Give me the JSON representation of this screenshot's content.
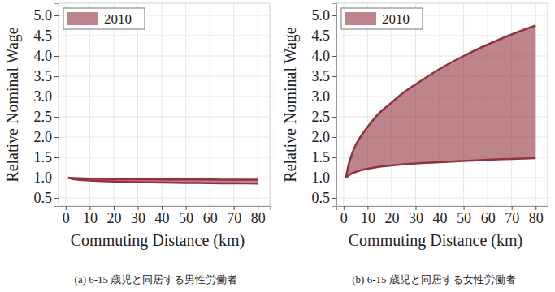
{
  "chart_data": [
    {
      "type": "area",
      "title": "(a)  6-15 歳児と同居する男性労働者",
      "x_label": "Commuting Distance (km)",
      "y_label": "Relative Nominal Wage",
      "x": [
        1,
        2,
        3,
        5,
        7,
        10,
        15,
        20,
        25,
        30,
        40,
        50,
        60,
        70,
        80
      ],
      "series": [
        {
          "name": "2010",
          "color": "#93323f",
          "values": [
            1.0,
            0.995,
            0.99,
            0.985,
            0.98,
            0.975,
            0.97,
            0.965,
            0.962,
            0.96,
            0.957,
            0.955,
            0.953,
            0.951,
            0.95
          ],
          "low": [
            1.0,
            0.98,
            0.965,
            0.95,
            0.94,
            0.93,
            0.915,
            0.905,
            0.895,
            0.89,
            0.88,
            0.872,
            0.865,
            0.86,
            0.855
          ]
        }
      ],
      "xlim": [
        -3,
        85
      ],
      "xticks": [
        0,
        10,
        20,
        30,
        40,
        50,
        60,
        70,
        80
      ],
      "ylim": [
        0.3,
        5.3
      ],
      "yticks": [
        0.5,
        {
          "value": 1,
          "label": "1.0"
        },
        1.5,
        {
          "value": 2,
          "label": "2.0"
        },
        2.5,
        {
          "value": 3,
          "label": "3.0"
        },
        3.5,
        {
          "value": 4,
          "label": "4.0"
        },
        4.5,
        {
          "value": 5,
          "label": "5.0"
        }
      ],
      "grid": true,
      "legend": "top-left"
    },
    {
      "type": "area",
      "title": "(b) 6-15 歳児と同居する女性労働者",
      "x_label": "Commuting Distance (km)",
      "y_label": "Relative Nominal Wage",
      "x": [
        1,
        2,
        3,
        5,
        7,
        10,
        15,
        20,
        25,
        30,
        40,
        50,
        60,
        70,
        80
      ],
      "series": [
        {
          "name": "2010",
          "color": "#93323f",
          "values": [
            1.0,
            1.3,
            1.5,
            1.8,
            2.0,
            2.25,
            2.6,
            2.85,
            3.1,
            3.3,
            3.68,
            4.0,
            4.28,
            4.53,
            4.75
          ],
          "low": [
            1.0,
            1.05,
            1.09,
            1.14,
            1.18,
            1.22,
            1.27,
            1.3,
            1.33,
            1.35,
            1.38,
            1.41,
            1.44,
            1.46,
            1.48
          ]
        }
      ],
      "xlim": [
        -3,
        85
      ],
      "xticks": [
        0,
        10,
        20,
        30,
        40,
        50,
        60,
        70,
        80
      ],
      "ylim": [
        0.3,
        5.3
      ],
      "yticks": [
        0.5,
        {
          "value": 1,
          "label": "1.0"
        },
        1.5,
        {
          "value": 2,
          "label": "2.0"
        },
        2.5,
        {
          "value": 3,
          "label": "3.0"
        },
        3.5,
        {
          "value": 4,
          "label": "4.0"
        },
        4.5,
        {
          "value": 5,
          "label": "5.0"
        }
      ],
      "grid": true,
      "legend": "top-left"
    }
  ]
}
